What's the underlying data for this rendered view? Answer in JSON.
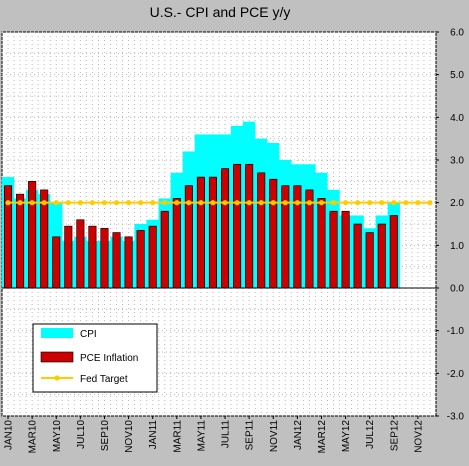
{
  "chart_data": {
    "type": "bar",
    "title": "U.S.- CPI and PCE y/y",
    "ylim": [
      -3.0,
      6.0
    ],
    "y_ticks": [
      "-3.0",
      "-2.0",
      "-1.0",
      "0.0",
      "1.0",
      "2.0",
      "3.0",
      "4.0",
      "5.0",
      "6.0"
    ],
    "y_tick_values": [
      -3,
      -2,
      -1,
      0,
      1,
      2,
      3,
      4,
      5,
      6
    ],
    "x_tick_labels": [
      "JAN10",
      "MAR10",
      "MAY10",
      "JUL10",
      "SEP10",
      "NOV10",
      "JAN11",
      "MAR11",
      "MAY11",
      "JUL11",
      "SEP11",
      "NOV11",
      "JAN12",
      "MAR12",
      "MAY12",
      "JUL12",
      "SEP12",
      "NOV12"
    ],
    "grid": true,
    "legend_position": "bottom-left",
    "categories": [
      "JAN10",
      "FEB10",
      "MAR10",
      "APR10",
      "MAY10",
      "JUN10",
      "JUL10",
      "AUG10",
      "SEP10",
      "OCT10",
      "NOV10",
      "DEC10",
      "JAN11",
      "FEB11",
      "MAR11",
      "APR11",
      "MAY11",
      "JUN11",
      "JUL11",
      "AUG11",
      "SEP11",
      "OCT11",
      "NOV11",
      "DEC11",
      "JAN12",
      "FEB12",
      "MAR12",
      "APR12",
      "MAY12",
      "JUN12",
      "JUL12",
      "AUG12",
      "SEP12",
      "OCT12",
      "NOV12",
      "DEC12"
    ],
    "series": [
      {
        "name": "CPI",
        "color": "#00ffff",
        "values": [
          2.6,
          2.1,
          2.3,
          2.2,
          2.0,
          1.1,
          1.2,
          1.1,
          1.1,
          1.2,
          1.1,
          1.5,
          1.6,
          2.1,
          2.7,
          3.2,
          3.6,
          3.6,
          3.6,
          3.8,
          3.9,
          3.5,
          3.4,
          3.0,
          2.9,
          2.9,
          2.7,
          2.3,
          1.7,
          1.7,
          1.4,
          1.7,
          2.0,
          null,
          null,
          null
        ]
      },
      {
        "name": "PCE Inflation",
        "color": "#cc0000",
        "values": [
          2.4,
          2.2,
          2.5,
          2.3,
          1.2,
          1.45,
          1.6,
          1.45,
          1.4,
          1.3,
          1.2,
          1.35,
          1.45,
          1.8,
          2.1,
          2.4,
          2.6,
          2.6,
          2.8,
          2.9,
          2.9,
          2.7,
          2.55,
          2.4,
          2.4,
          2.3,
          2.1,
          1.8,
          1.8,
          1.5,
          1.3,
          1.5,
          1.7,
          null,
          null,
          null
        ]
      },
      {
        "name": "Fed Target",
        "color": "#ffcc00",
        "values": [
          2.0,
          2.0,
          2.0,
          2.0,
          2.0,
          2.0,
          2.0,
          2.0,
          2.0,
          2.0,
          2.0,
          2.0,
          2.0,
          2.0,
          2.0,
          2.0,
          2.0,
          2.0,
          2.0,
          2.0,
          2.0,
          2.0,
          2.0,
          2.0,
          2.0,
          2.0,
          2.0,
          2.0,
          2.0,
          2.0,
          2.0,
          2.0,
          2.0,
          2.0,
          2.0,
          2.0
        ]
      }
    ]
  }
}
